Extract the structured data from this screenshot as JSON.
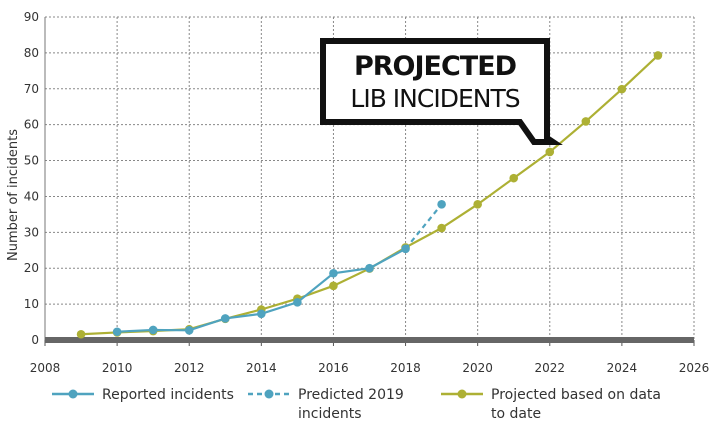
{
  "chart_data": {
    "type": "line",
    "ylabel": "Number of incidents",
    "xlabel": "",
    "xlim": [
      2008,
      2026
    ],
    "ylim": [
      0,
      90
    ],
    "x_ticks": [
      "2008",
      "2010",
      "2012",
      "2014",
      "2016",
      "2018",
      "2020",
      "2022",
      "2024",
      "2026"
    ],
    "y_ticks": [
      "0",
      "10",
      "20",
      "30",
      "40",
      "50",
      "60",
      "70",
      "80",
      "90"
    ],
    "grid": true,
    "legend_position": "bottom",
    "annotation": {
      "line1": "PROJECTED",
      "line2": "LIB INCIDENTS"
    },
    "series": [
      {
        "name": "Reported incidents",
        "color": "#4fa3bf",
        "style": "solid",
        "points": [
          [
            2010,
            2.3
          ],
          [
            2011,
            2.8
          ],
          [
            2012,
            2.7
          ],
          [
            2013,
            6
          ],
          [
            2014,
            7.3
          ],
          [
            2015,
            10.5
          ],
          [
            2016,
            18.6
          ],
          [
            2017,
            20
          ],
          [
            2018,
            25.4
          ]
        ]
      },
      {
        "name": "Predicted 2019 incidents",
        "color": "#4fa3bf",
        "style": "dashed",
        "points": [
          [
            2018,
            25.4
          ],
          [
            2019,
            37.8
          ]
        ]
      },
      {
        "name": "Projected based on data to date",
        "color": "#adb034",
        "style": "solid",
        "points": [
          [
            2009,
            1.6
          ],
          [
            2010,
            2.1
          ],
          [
            2011,
            2.5
          ],
          [
            2012,
            3
          ],
          [
            2013,
            5.9
          ],
          [
            2014,
            8.5
          ],
          [
            2015,
            11.5
          ],
          [
            2016,
            15.1
          ],
          [
            2017,
            19.9
          ],
          [
            2018,
            25.8
          ],
          [
            2019,
            31.2
          ],
          [
            2020,
            37.8
          ],
          [
            2021,
            45.1
          ],
          [
            2022,
            52.4
          ],
          [
            2023,
            60.9
          ],
          [
            2024,
            69.9
          ],
          [
            2025,
            79.3
          ]
        ]
      }
    ]
  },
  "legend": {
    "reported": "Reported incidents",
    "predicted_line1": "Predicted 2019",
    "predicted_line2": "incidents",
    "projected_line1": "Projected based on data",
    "projected_line2": "to date"
  }
}
